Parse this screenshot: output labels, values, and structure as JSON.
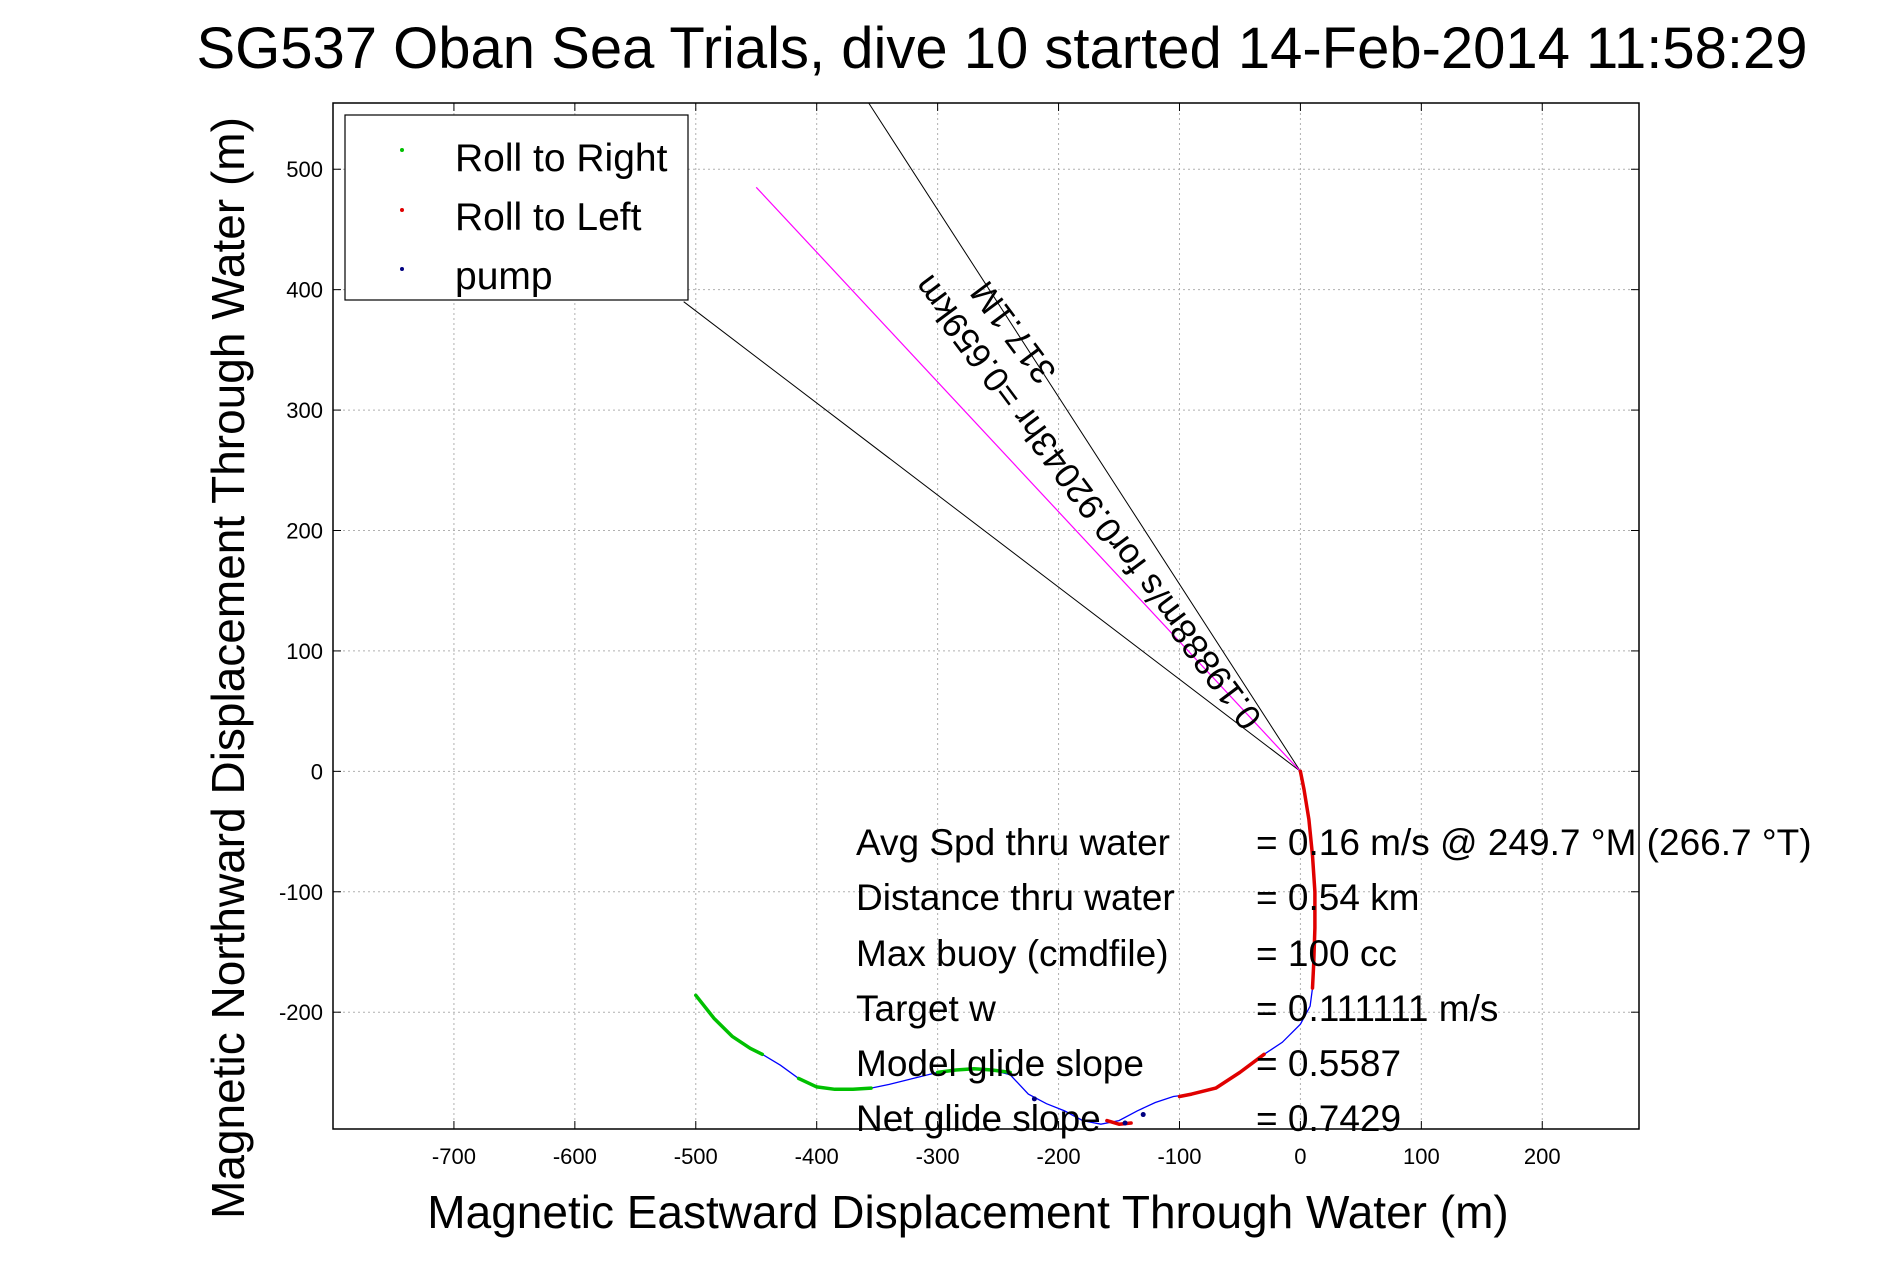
{
  "chart_data": {
    "type": "line",
    "title": "SG537 Oban Sea Trials, dive 10 started 14-Feb-2014 11:58:29",
    "xlabel": "Magnetic Eastward Displacement Through Water (m)",
    "ylabel": "Magnetic Northward Displacement Through Water (m)",
    "xlim": [
      -800,
      280
    ],
    "ylim": [
      -297,
      555
    ],
    "xticks": [
      -700,
      -600,
      -500,
      -400,
      -300,
      -200,
      -100,
      0,
      100,
      200
    ],
    "yticks": [
      -200,
      -100,
      0,
      100,
      200,
      300,
      400,
      500
    ],
    "grid": true,
    "legend_position": "top-left",
    "legend": [
      {
        "label": "Roll to Right",
        "color": "#00c000"
      },
      {
        "label": "Roll to Left",
        "color": "#e00000"
      },
      {
        "label": "pump",
        "color": "#000080"
      }
    ],
    "track_color": "#0000ff",
    "series": [
      {
        "name": "Roll to Right",
        "color": "#00c000",
        "segments": [
          [
            [
              -500,
              -186
            ],
            [
              -485,
              -205
            ],
            [
              -470,
              -220
            ],
            [
              -455,
              -230
            ],
            [
              -445,
              -235
            ]
          ],
          [
            [
              -415,
              -255
            ],
            [
              -400,
              -262
            ],
            [
              -385,
              -264
            ],
            [
              -370,
              -264
            ],
            [
              -355,
              -263
            ]
          ],
          [
            [
              -300,
              -250
            ],
            [
              -285,
              -248
            ],
            [
              -270,
              -247
            ],
            [
              -255,
              -248
            ],
            [
              -240,
              -250
            ]
          ]
        ]
      },
      {
        "name": "Roll to Left",
        "color": "#e00000",
        "segments": [
          [
            [
              0,
              0
            ],
            [
              3,
              -15
            ],
            [
              7,
              -40
            ],
            [
              10,
              -70
            ],
            [
              12,
              -100
            ],
            [
              12,
              -130
            ],
            [
              11,
              -160
            ],
            [
              10,
              -180
            ]
          ],
          [
            [
              -30,
              -235
            ],
            [
              -50,
              -250
            ],
            [
              -70,
              -263
            ],
            [
              -90,
              -268
            ],
            [
              -100,
              -270
            ]
          ],
          [
            [
              -160,
              -290
            ],
            [
              -150,
              -293
            ],
            [
              -140,
              -292
            ]
          ]
        ]
      },
      {
        "name": "pump",
        "color": "#000080",
        "points": [
          [
            -220,
            -272
          ],
          [
            -130,
            -285
          ],
          [
            -145,
            -292
          ]
        ]
      },
      {
        "name": "track",
        "color": "#0000ff",
        "points": [
          [
            0,
            0
          ],
          [
            3,
            -15
          ],
          [
            7,
            -40
          ],
          [
            10,
            -70
          ],
          [
            12,
            -100
          ],
          [
            12,
            -130
          ],
          [
            11,
            -160
          ],
          [
            10,
            -180
          ],
          [
            8,
            -195
          ],
          [
            0,
            -210
          ],
          [
            -15,
            -225
          ],
          [
            -30,
            -235
          ],
          [
            -50,
            -250
          ],
          [
            -70,
            -263
          ],
          [
            -90,
            -268
          ],
          [
            -105,
            -270
          ],
          [
            -120,
            -275
          ],
          [
            -135,
            -282
          ],
          [
            -150,
            -290
          ],
          [
            -165,
            -293
          ],
          [
            -180,
            -290
          ],
          [
            -195,
            -282
          ],
          [
            -210,
            -276
          ],
          [
            -225,
            -268
          ],
          [
            -240,
            -252
          ],
          [
            -255,
            -248
          ],
          [
            -270,
            -247
          ],
          [
            -285,
            -248
          ],
          [
            -300,
            -250
          ],
          [
            -320,
            -255
          ],
          [
            -340,
            -260
          ],
          [
            -355,
            -263
          ],
          [
            -370,
            -264
          ],
          [
            -385,
            -264
          ],
          [
            -400,
            -262
          ],
          [
            -415,
            -255
          ],
          [
            -430,
            -244
          ],
          [
            -445,
            -235
          ],
          [
            -455,
            -230
          ],
          [
            -470,
            -220
          ],
          [
            -485,
            -205
          ],
          [
            -500,
            -186
          ]
        ]
      }
    ],
    "heading_line": {
      "from": [
        0,
        0
      ],
      "to": [
        -450,
        485
      ],
      "color": "#ff00ff"
    },
    "cone_lines": [
      {
        "from": [
          0,
          0
        ],
        "to": [
          -357,
          555
        ]
      },
      {
        "from": [
          0,
          0
        ],
        "to": [
          -510,
          390
        ]
      }
    ],
    "heading_annotation": {
      "line1": "0.19888m/s for0.92043hr =0.659km",
      "line2": "317.1M"
    },
    "stats": [
      {
        "label": "Avg Spd thru water",
        "value": "=  0.16 m/s @ 249.7 °M (266.7 °T)"
      },
      {
        "label": "Distance thru water",
        "value": "=  0.54 km"
      },
      {
        "label": "Max buoy (cmdfile)",
        "value": "= 100 cc"
      },
      {
        "label": "Target w",
        "value": "= 0.111111 m/s"
      },
      {
        "label": "Model glide slope",
        "value": "= 0.5587"
      },
      {
        "label": "Net glide slope",
        "value": "= 0.7429"
      }
    ]
  }
}
